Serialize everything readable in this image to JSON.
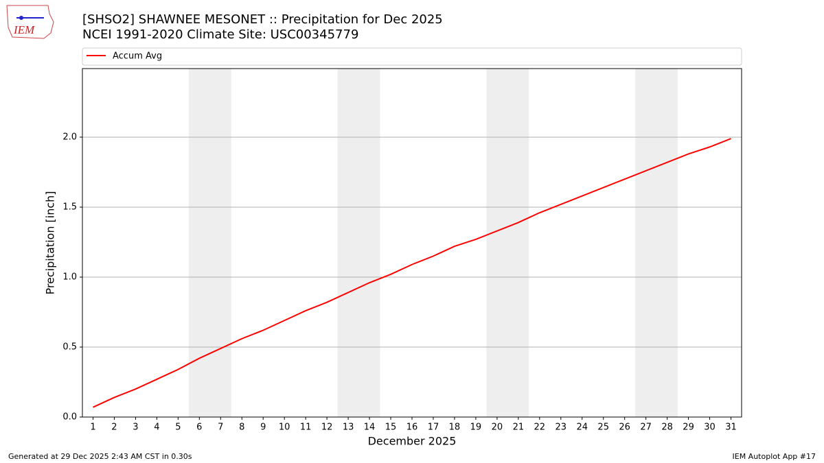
{
  "logo_text": "IEM",
  "footer_left": "Generated at 29 Dec 2025 2:43 AM CST in 0.30s",
  "footer_right": "IEM Autoplot App #17",
  "chart_data": {
    "type": "line",
    "title": "[SHSO2] SHAWNEE MESONET :: Precipitation for Dec 2025",
    "subtitle": "NCEI 1991-2020 Climate Site: USC00345779",
    "xlabel": "December 2025",
    "ylabel": "Precipitation [inch]",
    "x": [
      1,
      2,
      3,
      4,
      5,
      6,
      7,
      8,
      9,
      10,
      11,
      12,
      13,
      14,
      15,
      16,
      17,
      18,
      19,
      20,
      21,
      22,
      23,
      24,
      25,
      26,
      27,
      28,
      29,
      30,
      31
    ],
    "series": [
      {
        "name": "Accum Avg",
        "color": "#ff0000",
        "values": [
          0.07,
          0.14,
          0.2,
          0.27,
          0.34,
          0.42,
          0.49,
          0.56,
          0.62,
          0.69,
          0.76,
          0.82,
          0.89,
          0.96,
          1.02,
          1.09,
          1.15,
          1.22,
          1.27,
          1.33,
          1.39,
          1.46,
          1.52,
          1.58,
          1.64,
          1.7,
          1.76,
          1.82,
          1.88,
          1.93,
          1.99
        ]
      }
    ],
    "shaded_spans": [
      [
        5.5,
        7.5
      ],
      [
        12.5,
        14.5
      ],
      [
        19.5,
        21.5
      ],
      [
        26.5,
        28.5
      ]
    ],
    "shade_color": "#eeeeee",
    "xlim": [
      0.5,
      31.5
    ],
    "ylim": [
      0,
      2.49
    ],
    "xticks": [
      1,
      2,
      3,
      4,
      5,
      6,
      7,
      8,
      9,
      10,
      11,
      12,
      13,
      14,
      15,
      16,
      17,
      18,
      19,
      20,
      21,
      22,
      23,
      24,
      25,
      26,
      27,
      28,
      29,
      30,
      31
    ],
    "yticks": [
      {
        "value": 0,
        "label": "0.0"
      },
      {
        "value": 0.5,
        "label": "0.5"
      },
      {
        "value": 1,
        "label": "1.0"
      },
      {
        "value": 1.5,
        "label": "1.5"
      },
      {
        "value": 2,
        "label": "2.0"
      }
    ],
    "grid": "y",
    "legend": "top"
  }
}
